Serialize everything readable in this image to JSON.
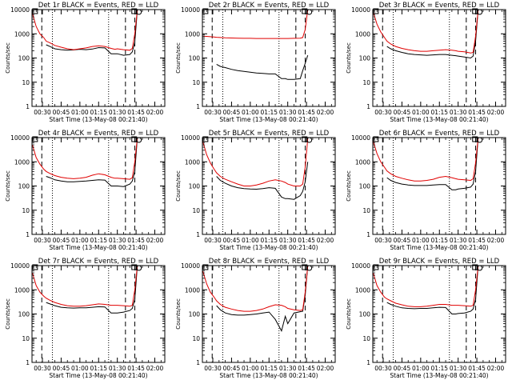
{
  "colors": {
    "events": "#000000",
    "lld": "#e00000",
    "axes": "#000000",
    "background": "#ffffff"
  },
  "shared": {
    "ylabel": "Counts/sec",
    "xlabel": "Start Time (13-May-08 00:21:40)",
    "yticks": [
      1,
      10,
      100,
      1000,
      10000
    ],
    "ytick_labels": [
      "1",
      "10",
      "100",
      "1000",
      "10000"
    ],
    "xticks": [
      "00:30",
      "00:45",
      "01:00",
      "01:15",
      "01:30",
      "01:45",
      "02:00"
    ]
  },
  "chart_data": [
    {
      "type": "line",
      "title": "Det 1r BLACK = Events, RED = LLD",
      "xlabel": "Start Time (13-May-08 00:21:40)",
      "ylabel": "Counts/sec",
      "y_scale": "log",
      "ylim": [
        1,
        10000
      ],
      "xlim": [
        "00:21:40",
        "02:08:00"
      ],
      "grid": false,
      "x_minutes": [
        22,
        25,
        28,
        31,
        33,
        36,
        40,
        45,
        50,
        55,
        60,
        65,
        70,
        75,
        80,
        85,
        88,
        90,
        95,
        100,
        102,
        104,
        106
      ],
      "series": [
        {
          "name": "BLACK = Events",
          "values": [
            null,
            null,
            null,
            null,
            350,
            300,
            240,
            220,
            210,
            215,
            230,
            220,
            235,
            270,
            260,
            150,
            150,
            150,
            130,
            140,
            180,
            450,
            10000
          ]
        },
        {
          "name": "RED = LLD",
          "values": [
            7000,
            2000,
            1000,
            700,
            500,
            420,
            330,
            280,
            240,
            220,
            240,
            260,
            300,
            320,
            300,
            250,
            230,
            240,
            220,
            210,
            250,
            1000,
            10000
          ]
        }
      ]
    },
    {
      "type": "line",
      "title": "Det 2r BLACK = Events, RED = LLD",
      "xlabel": "Start Time (13-May-08 00:21:40)",
      "ylabel": "Counts/sec",
      "y_scale": "log",
      "ylim": [
        1,
        10000
      ],
      "xlim": [
        "00:21:40",
        "02:08:00"
      ],
      "grid": false,
      "x_minutes": [
        22,
        25,
        28,
        31,
        33,
        36,
        40,
        45,
        50,
        55,
        60,
        65,
        70,
        75,
        80,
        85,
        88,
        90,
        95,
        100,
        102,
        104,
        106
      ],
      "series": [
        {
          "name": "BLACK = Events",
          "values": [
            null,
            null,
            null,
            null,
            55,
            45,
            40,
            34,
            30,
            28,
            26,
            24,
            23,
            22,
            22,
            14,
            14,
            13,
            13,
            14,
            30,
            60,
            130
          ]
        },
        {
          "name": "RED = LLD",
          "values": [
            800,
            780,
            760,
            740,
            720,
            700,
            680,
            670,
            660,
            650,
            650,
            640,
            640,
            640,
            640,
            640,
            640,
            640,
            650,
            660,
            700,
            1500,
            10000
          ]
        }
      ]
    },
    {
      "type": "line",
      "title": "Det 3r BLACK = Events, RED = LLD",
      "xlabel": "Start Time (13-May-08 00:21:40)",
      "ylabel": "Counts/sec",
      "y_scale": "log",
      "ylim": [
        1,
        10000
      ],
      "xlim": [
        "00:21:40",
        "02:08:00"
      ],
      "grid": false,
      "x_minutes": [
        22,
        25,
        28,
        31,
        33,
        36,
        40,
        45,
        50,
        55,
        60,
        65,
        70,
        75,
        80,
        85,
        88,
        90,
        95,
        100,
        102,
        104,
        106
      ],
      "series": [
        {
          "name": "BLACK = Events",
          "values": [
            null,
            null,
            null,
            null,
            300,
            240,
            200,
            170,
            150,
            140,
            135,
            130,
            135,
            140,
            140,
            130,
            125,
            120,
            110,
            100,
            120,
            500,
            10000
          ]
        },
        {
          "name": "RED = LLD",
          "values": [
            8000,
            2500,
            1200,
            700,
            500,
            380,
            300,
            250,
            220,
            200,
            190,
            190,
            200,
            210,
            220,
            210,
            200,
            190,
            180,
            160,
            170,
            800,
            10000
          ]
        }
      ]
    },
    {
      "type": "line",
      "title": "Det 4r BLACK = Events, RED = LLD",
      "xlabel": "Start Time (13-May-08 00:21:40)",
      "ylabel": "Counts/sec",
      "y_scale": "log",
      "ylim": [
        1,
        10000
      ],
      "xlim": [
        "00:21:40",
        "02:08:00"
      ],
      "grid": false,
      "x_minutes": [
        22,
        25,
        28,
        31,
        33,
        36,
        40,
        45,
        50,
        55,
        60,
        65,
        70,
        75,
        80,
        85,
        88,
        90,
        95,
        100,
        102,
        104,
        106
      ],
      "series": [
        {
          "name": "BLACK = Events",
          "values": [
            null,
            null,
            null,
            null,
            250,
            220,
            180,
            160,
            150,
            150,
            155,
            160,
            170,
            180,
            175,
            100,
            100,
            100,
            95,
            120,
            160,
            400,
            10000
          ]
        },
        {
          "name": "RED = LLD",
          "values": [
            5000,
            1500,
            800,
            500,
            400,
            330,
            270,
            230,
            210,
            200,
            210,
            230,
            280,
            320,
            290,
            230,
            210,
            210,
            200,
            190,
            220,
            1000,
            10000
          ]
        }
      ]
    },
    {
      "type": "line",
      "title": "Det 5r BLACK = Events, RED = LLD",
      "xlabel": "Start Time (13-May-08 00:21:40)",
      "ylabel": "Counts/sec",
      "y_scale": "log",
      "ylim": [
        1,
        10000
      ],
      "xlim": [
        "00:21:40",
        "02:08:00"
      ],
      "grid": false,
      "x_minutes": [
        22,
        25,
        28,
        31,
        33,
        36,
        40,
        45,
        50,
        55,
        60,
        65,
        70,
        75,
        80,
        85,
        88,
        90,
        95,
        100,
        102,
        104,
        106
      ],
      "series": [
        {
          "name": "BLACK = Events",
          "values": [
            null,
            null,
            null,
            null,
            250,
            170,
            130,
            100,
            85,
            78,
            75,
            74,
            78,
            85,
            80,
            35,
            30,
            30,
            28,
            40,
            60,
            150,
            1000
          ]
        },
        {
          "name": "RED = LLD",
          "values": [
            7000,
            2000,
            900,
            500,
            350,
            250,
            190,
            150,
            120,
            100,
            100,
            110,
            130,
            160,
            180,
            160,
            140,
            120,
            100,
            100,
            120,
            600,
            9000
          ]
        }
      ]
    },
    {
      "type": "line",
      "title": "Det 6r BLACK = Events, RED = LLD",
      "xlabel": "Start Time (13-May-08 00:21:40)",
      "ylabel": "Counts/sec",
      "y_scale": "log",
      "ylim": [
        1,
        10000
      ],
      "xlim": [
        "00:21:40",
        "02:08:00"
      ],
      "grid": false,
      "x_minutes": [
        22,
        25,
        28,
        31,
        33,
        36,
        40,
        45,
        50,
        55,
        60,
        65,
        70,
        75,
        80,
        85,
        88,
        90,
        95,
        100,
        102,
        104,
        106
      ],
      "series": [
        {
          "name": "BLACK = Events",
          "values": [
            null,
            null,
            null,
            null,
            220,
            170,
            140,
            120,
            110,
            105,
            105,
            105,
            110,
            115,
            115,
            70,
            70,
            75,
            80,
            90,
            120,
            400,
            10000
          ]
        },
        {
          "name": "RED = LLD",
          "values": [
            7000,
            2200,
            1000,
            600,
            420,
            320,
            250,
            210,
            180,
            160,
            160,
            170,
            190,
            230,
            250,
            220,
            200,
            190,
            180,
            170,
            200,
            900,
            10000
          ]
        }
      ]
    },
    {
      "type": "line",
      "title": "Det 7r BLACK = Events, RED = LLD",
      "xlabel": "Start Time (13-May-08 00:21:40)",
      "ylabel": "Counts/sec",
      "y_scale": "log",
      "ylim": [
        1,
        10000
      ],
      "xlim": [
        "00:21:40",
        "02:08:00"
      ],
      "grid": false,
      "x_minutes": [
        22,
        25,
        28,
        31,
        33,
        36,
        40,
        45,
        50,
        55,
        60,
        65,
        70,
        75,
        80,
        85,
        88,
        90,
        95,
        100,
        102,
        104,
        106
      ],
      "series": [
        {
          "name": "BLACK = Events",
          "values": [
            null,
            null,
            null,
            null,
            300,
            260,
            220,
            190,
            180,
            175,
            180,
            180,
            190,
            200,
            195,
            110,
            110,
            110,
            120,
            140,
            170,
            400,
            10000
          ]
        },
        {
          "name": "RED = LLD",
          "values": [
            5000,
            1500,
            800,
            550,
            450,
            370,
            300,
            250,
            220,
            210,
            210,
            220,
            240,
            260,
            250,
            230,
            230,
            230,
            220,
            210,
            230,
            1000,
            10000
          ]
        }
      ]
    },
    {
      "type": "line",
      "title": "Det 8r BLACK = Events, RED = LLD",
      "xlabel": "Start Time (13-May-08 00:21:40)",
      "ylabel": "Counts/sec",
      "y_scale": "log",
      "ylim": [
        1,
        10000
      ],
      "xlim": [
        "00:21:40",
        "02:08:00"
      ],
      "grid": false,
      "x_minutes": [
        22,
        25,
        28,
        31,
        33,
        36,
        40,
        45,
        50,
        55,
        60,
        65,
        70,
        75,
        80,
        85,
        88,
        90,
        95,
        100,
        102,
        104,
        106
      ],
      "series": [
        {
          "name": "BLACK = Events",
          "values": [
            null,
            null,
            null,
            null,
            220,
            150,
            110,
            95,
            90,
            90,
            95,
            100,
            110,
            120,
            60,
            20,
            80,
            40,
            110,
            125,
            130,
            600,
            10000
          ]
        },
        {
          "name": "RED = LLD",
          "values": [
            6000,
            1800,
            800,
            500,
            350,
            250,
            190,
            160,
            140,
            130,
            130,
            140,
            160,
            200,
            240,
            230,
            200,
            170,
            150,
            140,
            150,
            800,
            10000
          ]
        }
      ]
    },
    {
      "type": "line",
      "title": "Det 9r BLACK = Events, RED = LLD",
      "xlabel": "Start Time (13-May-08 00:21:40)",
      "ylabel": "Counts/sec",
      "y_scale": "log",
      "ylim": [
        1,
        10000
      ],
      "xlim": [
        "00:21:40",
        "02:08:00"
      ],
      "grid": false,
      "x_minutes": [
        22,
        25,
        28,
        31,
        33,
        36,
        40,
        45,
        50,
        55,
        60,
        65,
        70,
        75,
        80,
        85,
        88,
        90,
        95,
        100,
        102,
        104,
        106
      ],
      "series": [
        {
          "name": "BLACK = Events",
          "values": [
            null,
            null,
            null,
            null,
            300,
            250,
            210,
            180,
            170,
            165,
            170,
            170,
            180,
            190,
            185,
            100,
            100,
            105,
            110,
            130,
            160,
            400,
            10000
          ]
        },
        {
          "name": "RED = LLD",
          "values": [
            5000,
            1500,
            800,
            500,
            420,
            350,
            280,
            240,
            210,
            200,
            200,
            210,
            230,
            250,
            250,
            230,
            230,
            230,
            220,
            210,
            230,
            1000,
            10000
          ]
        }
      ]
    }
  ]
}
